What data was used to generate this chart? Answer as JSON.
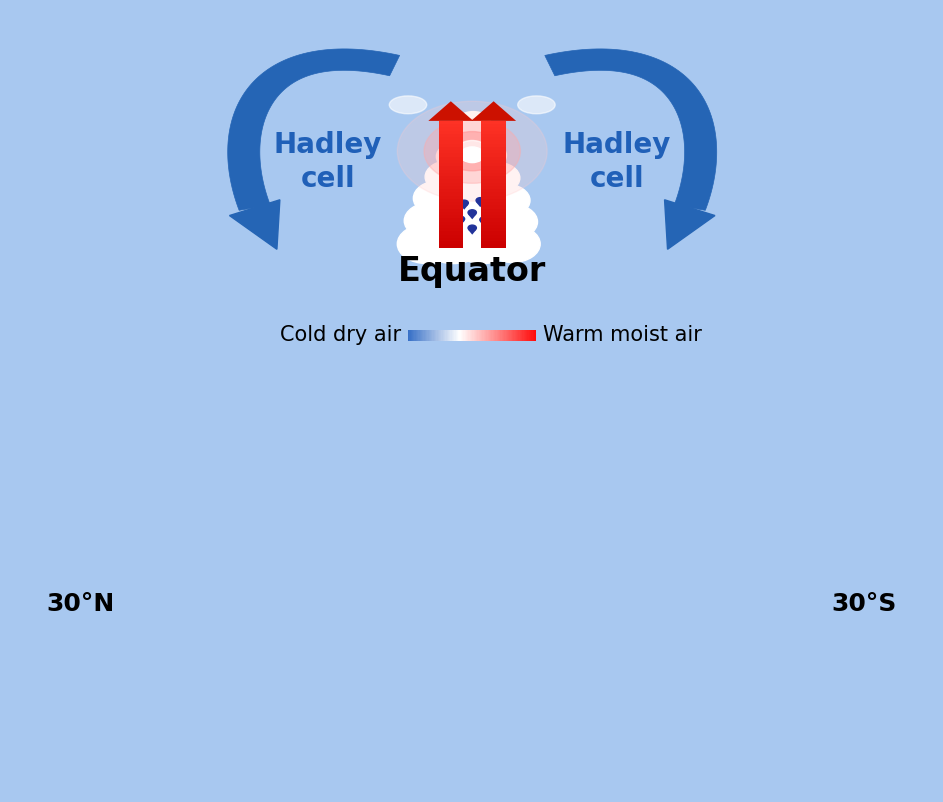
{
  "bg_color": "#a8c8f0",
  "arrow_blue": "#2565b5",
  "arrow_blue_dark": "#1a4f99",
  "arrow_red": "#cc1100",
  "equator_label": "Equator",
  "equator_fontsize": 24,
  "hadley_fontsize": 20,
  "hadley_label_color": "#2060b8",
  "label_30N": "30°N",
  "label_30S": "30°S",
  "label_fontsize": 18,
  "cold_dry_label": "Cold dry air",
  "warm_moist_label": "Warm moist air",
  "legend_fontsize": 15,
  "rain_color": "#22339a"
}
